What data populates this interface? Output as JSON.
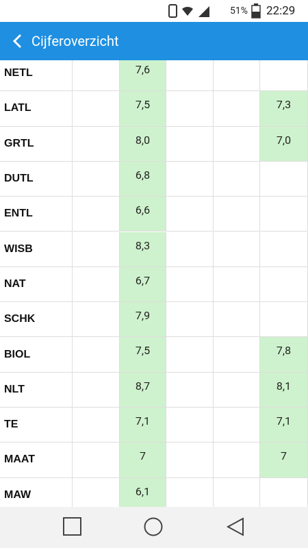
{
  "status_bar": {
    "battery": "51%",
    "time": "22:29"
  },
  "app_bar": {
    "title": "Cijferoverzicht"
  },
  "table": {
    "rows": [
      {
        "subject": "NETL",
        "grade_1": "7,6"
      },
      {
        "subject": "LATL",
        "grade_1": "7,5",
        "grade_2": "7,3"
      },
      {
        "subject": "GRTL",
        "grade_1": "8,0",
        "grade_2": "7,0"
      },
      {
        "subject": "DUTL",
        "grade_1": "6,8"
      },
      {
        "subject": "ENTL",
        "grade_1": "6,6"
      },
      {
        "subject": "WISB",
        "grade_1": "8,3"
      },
      {
        "subject": "NAT",
        "grade_1": "6,7"
      },
      {
        "subject": "SCHK",
        "grade_1": "7,9"
      },
      {
        "subject": "BIOL",
        "grade_1": "7,5",
        "grade_2": "7,8"
      },
      {
        "subject": "NLT",
        "grade_1": "8,7",
        "grade_2": "8,1"
      },
      {
        "subject": "TE",
        "grade_1": "7,1",
        "grade_2": "7,1"
      },
      {
        "subject": "MAAT",
        "grade_1": "7",
        "grade_2": "7"
      },
      {
        "subject": "MAW",
        "grade_1": "6,1"
      }
    ]
  }
}
